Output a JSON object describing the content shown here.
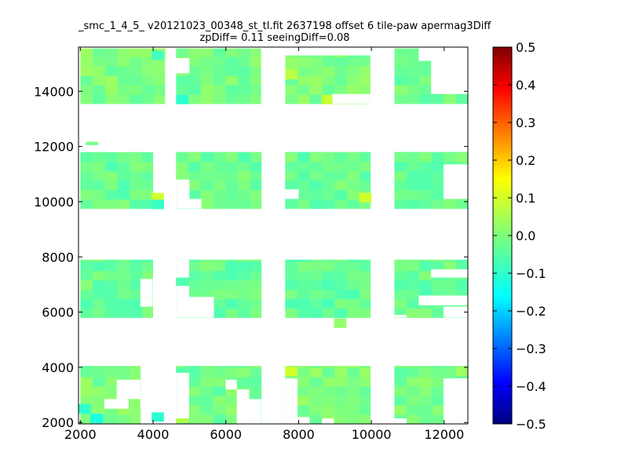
{
  "chart_data": {
    "type": "heatmap",
    "title_line1": "_smc_1_4_5_ v20121023_00348_st_tl.fit 2637198 offset 6 tile-paw apermag3Diff",
    "title_line2": "zpDiff= 0.11 seeingDiff=0.08",
    "xlim": [
      1950,
      12650
    ],
    "ylim": [
      1950,
      15600
    ],
    "xticks": [
      2000,
      4000,
      6000,
      8000,
      10000,
      12000
    ],
    "yticks": [
      2000,
      4000,
      6000,
      8000,
      10000,
      12000,
      14000
    ],
    "colorbar": {
      "colormap": "jet",
      "range": [
        -0.5,
        0.5
      ],
      "ticks": [
        "0.5",
        "0.4",
        "0.3",
        "0.2",
        "0.1",
        "0.0",
        "−0.1",
        "−0.2",
        "−0.3",
        "−0.4",
        "−0.5"
      ]
    },
    "cell_size": [
      340,
      340
    ],
    "blocks": [
      {
        "x": [
          2000,
          4330
        ],
        "y": [
          13550,
          15550
        ],
        "value": 0.0
      },
      {
        "x": [
          4630,
          6970
        ],
        "y": [
          13550,
          15550
        ],
        "value": -0.01
      },
      {
        "x": [
          7630,
          9970
        ],
        "y": [
          13550,
          15550
        ],
        "value": 0.0
      },
      {
        "x": [
          10630,
          12650
        ],
        "y": [
          13550,
          15550
        ],
        "value": -0.01
      },
      {
        "x": [
          2000,
          3990
        ],
        "y": [
          9750,
          11800
        ],
        "value": -0.02
      },
      {
        "x": [
          4630,
          6970
        ],
        "y": [
          9750,
          11800
        ],
        "value": -0.02
      },
      {
        "x": [
          7630,
          9970
        ],
        "y": [
          9750,
          11800
        ],
        "value": -0.02
      },
      {
        "x": [
          10630,
          12650
        ],
        "y": [
          9750,
          11800
        ],
        "value": -0.02
      },
      {
        "x": [
          2000,
          3990
        ],
        "y": [
          5800,
          7900
        ],
        "value": -0.02
      },
      {
        "x": [
          4630,
          6970
        ],
        "y": [
          5800,
          7900
        ],
        "value": -0.02
      },
      {
        "x": [
          7630,
          9970
        ],
        "y": [
          5800,
          7900
        ],
        "value": -0.03
      },
      {
        "x": [
          10630,
          12650
        ],
        "y": [
          5800,
          7900
        ],
        "value": -0.02
      },
      {
        "x": [
          2000,
          3650
        ],
        "y": [
          1950,
          4050
        ],
        "value": 0.0
      },
      {
        "x": [
          4630,
          6970
        ],
        "y": [
          1950,
          4050
        ],
        "value": -0.01
      },
      {
        "x": [
          7630,
          9970
        ],
        "y": [
          1950,
          4050
        ],
        "value": 0.0
      },
      {
        "x": [
          10630,
          12650
        ],
        "y": [
          1950,
          4050
        ],
        "value": -0.01
      }
    ],
    "extra_cells": [
      {
        "x": 2320,
        "y": 12000,
        "value": -0.01
      },
      {
        "x": 9140,
        "y": 5600,
        "value": 0.02
      },
      {
        "x": 7800,
        "y": 3850,
        "value": 0.08
      },
      {
        "x": 12500,
        "y": 3850,
        "value": 0.03
      },
      {
        "x": 4130,
        "y": 10150,
        "value": 0.08
      },
      {
        "x": 4130,
        "y": 9900,
        "value": -0.07
      },
      {
        "x": 9830,
        "y": 10150,
        "value": 0.08
      },
      {
        "x": 4130,
        "y": 15300,
        "value": -0.06
      },
      {
        "x": 4800,
        "y": 13700,
        "value": -0.08
      },
      {
        "x": 7800,
        "y": 14600,
        "value": 0.06
      },
      {
        "x": 8800,
        "y": 13700,
        "value": 0.07
      },
      {
        "x": 2100,
        "y": 2500,
        "value": -0.08
      },
      {
        "x": 2450,
        "y": 2150,
        "value": -0.1
      },
      {
        "x": 4130,
        "y": 2200,
        "value": -0.08
      },
      {
        "x": 4800,
        "y": 2150,
        "value": 0.05
      }
    ],
    "holes": [
      {
        "x": [
          4330,
          4630
        ],
        "y": [
          13550,
          14650
        ]
      },
      {
        "x": [
          4330,
          5000
        ],
        "y": [
          14650,
          15200
        ]
      },
      {
        "x": [
          6970,
          7630
        ],
        "y": [
          13550,
          15550
        ]
      },
      {
        "x": [
          9970,
          10630
        ],
        "y": [
          13550,
          15550
        ]
      },
      {
        "x": [
          8930,
          9970
        ],
        "y": [
          13550,
          13900
        ]
      },
      {
        "x": [
          11640,
          12650
        ],
        "y": [
          13900,
          15100
        ]
      },
      {
        "x": [
          11300,
          12650
        ],
        "y": [
          15100,
          15550
        ]
      },
      {
        "x": [
          7630,
          9970
        ],
        "y": [
          15300,
          15550
        ]
      },
      {
        "x": [
          2000,
          3990
        ],
        "y": [
          11800,
          12050
        ]
      },
      {
        "x": [
          4630,
          5000
        ],
        "y": [
          10100,
          10800
        ]
      },
      {
        "x": [
          4630,
          5330
        ],
        "y": [
          9750,
          10100
        ]
      },
      {
        "x": [
          7630,
          8000
        ],
        "y": [
          10100,
          10450
        ]
      },
      {
        "x": [
          11980,
          12650
        ],
        "y": [
          10100,
          11350
        ]
      },
      {
        "x": [
          4630,
          4990
        ],
        "y": [
          7250,
          7900
        ]
      },
      {
        "x": [
          4630,
          4990
        ],
        "y": [
          5800,
          6950
        ]
      },
      {
        "x": [
          4990,
          5670
        ],
        "y": [
          5800,
          6550
        ]
      },
      {
        "x": [
          3650,
          3990
        ],
        "y": [
          6550,
          7200
        ]
      },
      {
        "x": [
          3650,
          3990
        ],
        "y": [
          6200,
          6550
        ]
      },
      {
        "x": [
          11300,
          12650
        ],
        "y": [
          6250,
          6600
        ]
      },
      {
        "x": [
          11640,
          12650
        ],
        "y": [
          7250,
          7550
        ]
      },
      {
        "x": [
          11980,
          12650
        ],
        "y": [
          5800,
          6200
        ]
      },
      {
        "x": [
          10630,
          10970
        ],
        "y": [
          5800,
          5900
        ]
      },
      {
        "x": [
          2660,
          3330
        ],
        "y": [
          2500,
          2850
        ]
      },
      {
        "x": [
          3000,
          3650
        ],
        "y": [
          2850,
          3550
        ]
      },
      {
        "x": [
          3650,
          4330
        ],
        "y": [
          2500,
          3200
        ]
      },
      {
        "x": [
          4630,
          4990
        ],
        "y": [
          2150,
          3800
        ]
      },
      {
        "x": [
          6300,
          6640
        ],
        "y": [
          1950,
          3200
        ]
      },
      {
        "x": [
          5990,
          6300
        ],
        "y": [
          3200,
          3550
        ]
      },
      {
        "x": [
          6640,
          6970
        ],
        "y": [
          1950,
          2850
        ]
      },
      {
        "x": [
          7630,
          7970
        ],
        "y": [
          2200,
          3600
        ]
      },
      {
        "x": [
          7630,
          8300
        ],
        "y": [
          1950,
          2200
        ]
      },
      {
        "x": [
          11980,
          12650
        ],
        "y": [
          1950,
          3600
        ]
      },
      {
        "x": [
          8640,
          8970
        ],
        "y": [
          1950,
          2150
        ]
      },
      {
        "x": [
          10630,
          10970
        ],
        "y": [
          1950,
          2150
        ]
      }
    ],
    "note_rows": [
      15380,
      15040,
      14700,
      14360,
      14020,
      13720
    ]
  }
}
